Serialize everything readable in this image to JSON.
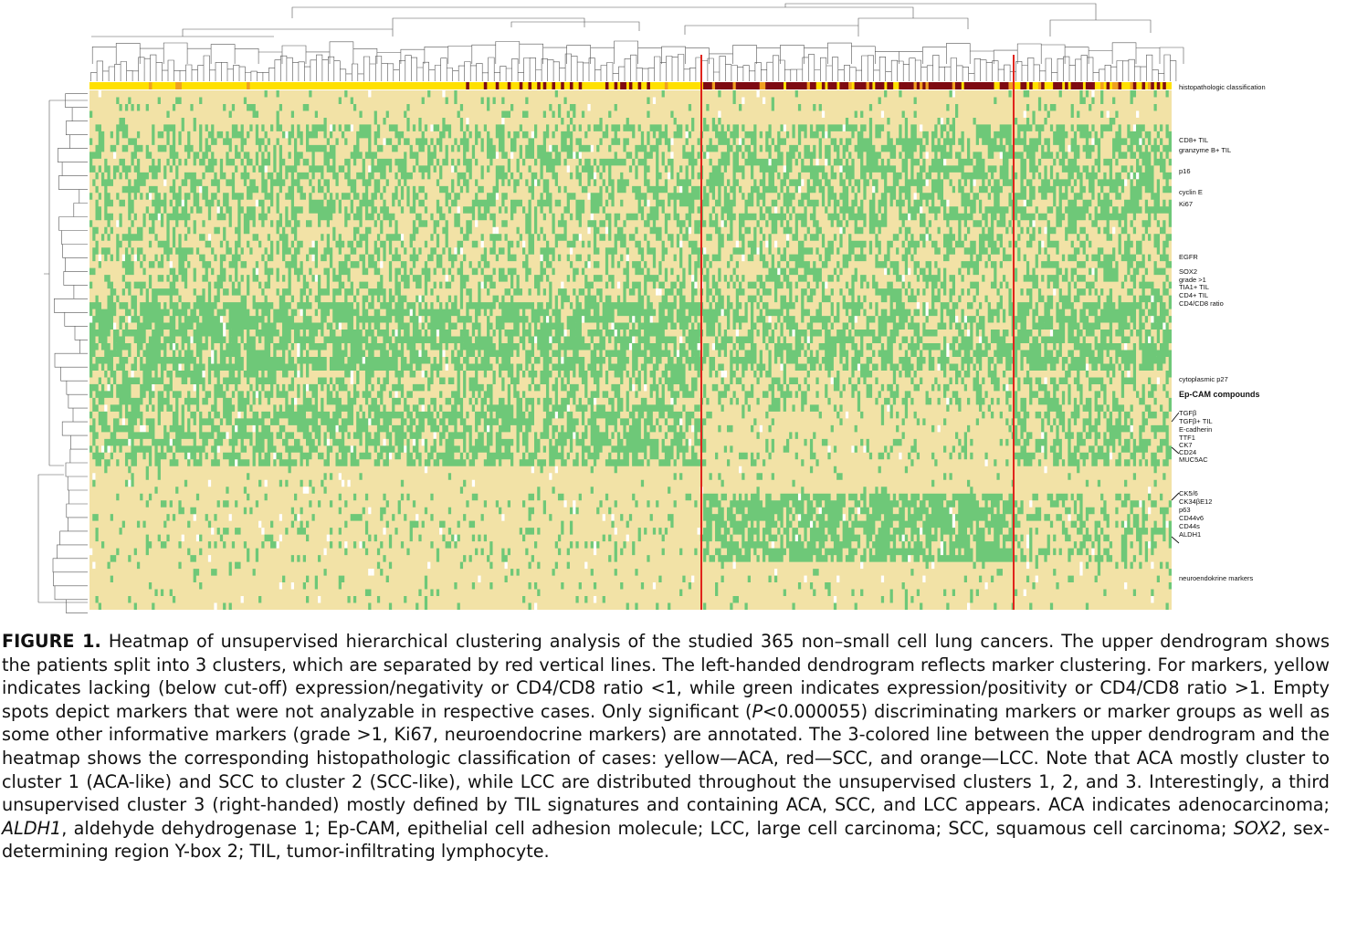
{
  "figure": {
    "histo_label": "histopathologic classification",
    "marker_labels": [
      {
        "text": "CD8+ TIL"
      },
      {
        "text": "granzyme B+ TIL"
      },
      {
        "text": "p16"
      },
      {
        "text": "cyclin E"
      },
      {
        "text": "Ki67"
      },
      {
        "text": "EGFR"
      },
      {
        "text": "SOX2"
      },
      {
        "text": "grade >1"
      },
      {
        "text": "TIA1+ TIL"
      },
      {
        "text": "CD4+ TIL"
      },
      {
        "text": "CD4/CD8 ratio"
      },
      {
        "text": "cytoplasmic p27"
      },
      {
        "text": "Ep-CAM compounds"
      },
      {
        "text": "TGFβ"
      },
      {
        "text": "TGFβ+ TIL"
      },
      {
        "text": "E-cadherin"
      },
      {
        "text": "TTF1"
      },
      {
        "text": "CK7"
      },
      {
        "text": "CD24"
      },
      {
        "text": "MUC5AC"
      },
      {
        "text": "CK5/6"
      },
      {
        "text": "CK34βE12"
      },
      {
        "text": "p63"
      },
      {
        "text": "CD44v6"
      },
      {
        "text": "CD44s"
      },
      {
        "text": "ALDH1"
      },
      {
        "text": "neuroendokrine markers"
      }
    ],
    "colors": {
      "negative": "#f2e2a6",
      "positive": "#6ec878",
      "aca": "#ffe000",
      "scc": "#7e0a12",
      "lcc": "#f0a020",
      "separator": "#e0241c"
    }
  },
  "caption": {
    "label": "FIGURE 1.",
    "p1": " Heatmap of unsupervised hierarchical clustering analysis of the studied 365 non–small cell lung cancers. The upper dendrogram shows the patients split into 3 clusters, which are separated by red vertical lines. The left-handed dendrogram reflects marker clustering. For markers, yellow indicates lacking (below cut-off) expression/negativity or CD4/CD8 ratio <1, while green indicates expression/positivity or CD4/CD8 ratio  >1. Empty spots depict markers that were not analyzable in respective cases. Only significant (",
    "p_italic": "P",
    "p2": "<0.000055) discriminating markers or marker groups as well as some other informative markers (grade  >1, Ki67, neuroendocrine markers) are annotated. The 3-colored line between the upper dendrogram and the heatmap shows the corresponding histopathologic classification of cases: yellow—ACA, red—SCC, and orange—LCC. Note that ACA mostly cluster to cluster 1 (ACA-like) and SCC to cluster 2 (SCC-like), while LCC are distributed throughout the unsupervised clusters 1, 2, and 3. Interestingly, a third unsupervised cluster 3 (right-handed) mostly defined by TIL signatures and containing ACA, SCC, and LCC appears. ACA indicates adenocarcinoma; ",
    "aldh1": "ALDH1",
    "p3": ", aldehyde dehydrogenase 1; Ep-CAM, epithelial cell adhesion molecule; LCC, large cell carcinoma; SCC, squamous cell carcinoma; ",
    "sox2": "SOX2",
    "p4": ", sex-determining region Y-box 2; TIL, tumor-infiltrating lymphocyte."
  }
}
